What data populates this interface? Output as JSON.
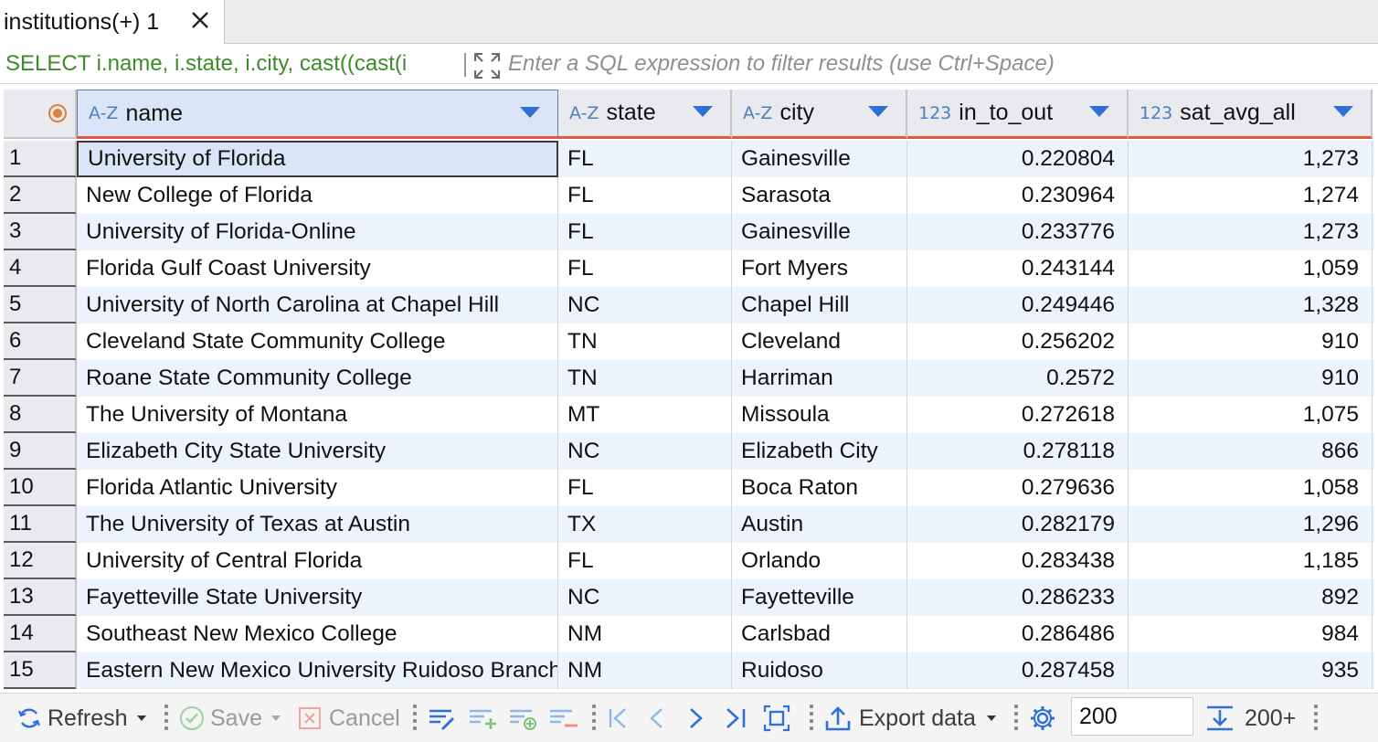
{
  "tab": {
    "label": "institutions(+) 1"
  },
  "filter": {
    "sql": "SELECT i.name, i.state, i.city, cast((cast(i",
    "placeholder": "Enter a SQL expression to filter results (use Ctrl+Space)"
  },
  "columns": [
    {
      "type": "A-Z",
      "name": "name"
    },
    {
      "type": "A-Z",
      "name": "state"
    },
    {
      "type": "A-Z",
      "name": "city"
    },
    {
      "type": "123",
      "name": "in_to_out"
    },
    {
      "type": "123",
      "name": "sat_avg_all"
    }
  ],
  "rows": [
    {
      "n": "1",
      "name": "University of Florida",
      "state": "FL",
      "city": "Gainesville",
      "in_to_out": "0.220804",
      "sat": "1,273"
    },
    {
      "n": "2",
      "name": "New College of Florida",
      "state": "FL",
      "city": "Sarasota",
      "in_to_out": "0.230964",
      "sat": "1,274"
    },
    {
      "n": "3",
      "name": "University of Florida-Online",
      "state": "FL",
      "city": "Gainesville",
      "in_to_out": "0.233776",
      "sat": "1,273"
    },
    {
      "n": "4",
      "name": "Florida Gulf Coast University",
      "state": "FL",
      "city": "Fort Myers",
      "in_to_out": "0.243144",
      "sat": "1,059"
    },
    {
      "n": "5",
      "name": "University of North Carolina at Chapel Hill",
      "state": "NC",
      "city": "Chapel Hill",
      "in_to_out": "0.249446",
      "sat": "1,328"
    },
    {
      "n": "6",
      "name": "Cleveland State Community College",
      "state": "TN",
      "city": "Cleveland",
      "in_to_out": "0.256202",
      "sat": "910"
    },
    {
      "n": "7",
      "name": "Roane State Community College",
      "state": "TN",
      "city": "Harriman",
      "in_to_out": "0.2572",
      "sat": "910"
    },
    {
      "n": "8",
      "name": "The University of Montana",
      "state": "MT",
      "city": "Missoula",
      "in_to_out": "0.272618",
      "sat": "1,075"
    },
    {
      "n": "9",
      "name": "Elizabeth City State University",
      "state": "NC",
      "city": "Elizabeth City",
      "in_to_out": "0.278118",
      "sat": "866"
    },
    {
      "n": "10",
      "name": "Florida Atlantic University",
      "state": "FL",
      "city": "Boca Raton",
      "in_to_out": "0.279636",
      "sat": "1,058"
    },
    {
      "n": "11",
      "name": "The University of Texas at Austin",
      "state": "TX",
      "city": "Austin",
      "in_to_out": "0.282179",
      "sat": "1,296"
    },
    {
      "n": "12",
      "name": "University of Central Florida",
      "state": "FL",
      "city": "Orlando",
      "in_to_out": "0.283438",
      "sat": "1,185"
    },
    {
      "n": "13",
      "name": "Fayetteville State University",
      "state": "NC",
      "city": "Fayetteville",
      "in_to_out": "0.286233",
      "sat": "892"
    },
    {
      "n": "14",
      "name": "Southeast New Mexico College",
      "state": "NM",
      "city": "Carlsbad",
      "in_to_out": "0.286486",
      "sat": "984"
    },
    {
      "n": "15",
      "name": "Eastern New Mexico University Ruidoso Branch",
      "state": "NM",
      "city": "Ruidoso",
      "in_to_out": "0.287458",
      "sat": "935"
    }
  ],
  "toolbar": {
    "refresh": "Refresh",
    "save": "Save",
    "cancel": "Cancel",
    "export": "Export data",
    "fetch_size": "200",
    "fetch_all": "200+"
  },
  "colors": {
    "sql_text": "#3d8c2a",
    "header_underline": "#e0593a",
    "alt_row": "#edf3fc",
    "type_badge": "#4c7fbf",
    "accent_blue": "#2f6fd6"
  }
}
